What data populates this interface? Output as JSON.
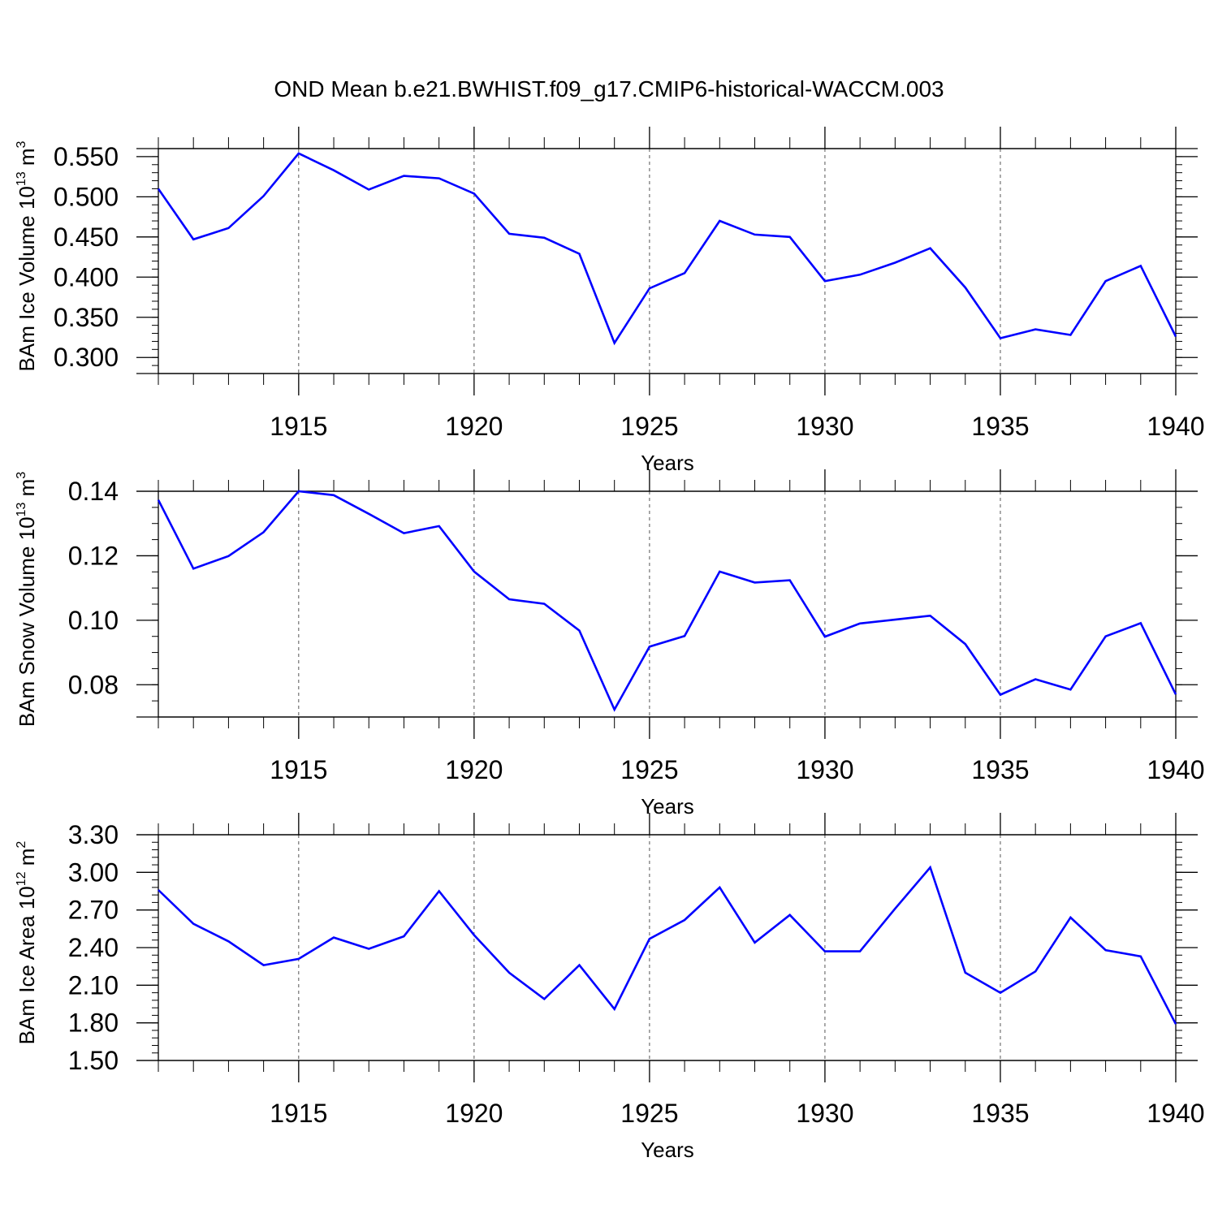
{
  "figure": {
    "title": "OND Mean b.e21.BWHIST.f09_g17.CMIP6-historical-WACCM.003",
    "line_color": "#0000ff"
  },
  "chart_data": [
    {
      "type": "line",
      "xlabel": "Years",
      "ylabel": {
        "text": "BAm Ice Volume 10",
        "exp": "13",
        "unit": " m",
        "unit_exp": "3"
      },
      "xlim": [
        1911,
        1940
      ],
      "ylim": [
        0.28,
        0.56
      ],
      "xticks": [
        1915,
        1920,
        1925,
        1930,
        1935,
        1940
      ],
      "xtick_labels": [
        "1915",
        "1920",
        "1925",
        "1930",
        "1935",
        "1940"
      ],
      "yticks": [
        0.3,
        0.35,
        0.4,
        0.45,
        0.5,
        0.55
      ],
      "ytick_labels": [
        "0.300",
        "0.350",
        "0.400",
        "0.450",
        "0.500",
        "0.550"
      ],
      "yminor_step": 0.01,
      "grid": "dashed vertical at major x ticks",
      "x": [
        1911,
        1912,
        1913,
        1914,
        1915,
        1916,
        1917,
        1918,
        1919,
        1920,
        1921,
        1922,
        1923,
        1924,
        1925,
        1926,
        1927,
        1928,
        1929,
        1930,
        1931,
        1932,
        1933,
        1934,
        1935,
        1936,
        1937,
        1938,
        1939,
        1940
      ],
      "values": [
        0.51,
        0.447,
        0.461,
        0.501,
        0.554,
        0.533,
        0.509,
        0.526,
        0.523,
        0.504,
        0.454,
        0.449,
        0.429,
        0.318,
        0.386,
        0.405,
        0.47,
        0.453,
        0.45,
        0.395,
        0.403,
        0.418,
        0.436,
        0.387,
        0.324,
        0.335,
        0.328,
        0.395,
        0.414,
        0.326
      ]
    },
    {
      "type": "line",
      "xlabel": "Years",
      "ylabel": {
        "text": "BAm Snow Volume 10",
        "exp": "13",
        "unit": " m",
        "unit_exp": "3"
      },
      "xlim": [
        1911,
        1940
      ],
      "ylim": [
        0.07,
        0.14
      ],
      "xticks": [
        1915,
        1920,
        1925,
        1930,
        1935,
        1940
      ],
      "xtick_labels": [
        "1915",
        "1920",
        "1925",
        "1930",
        "1935",
        "1940"
      ],
      "yticks": [
        0.08,
        0.1,
        0.12,
        0.14
      ],
      "ytick_labels": [
        "0.08",
        "0.10",
        "0.12",
        "0.14"
      ],
      "yminor_step": 0.005,
      "grid": "dashed vertical at major x ticks",
      "x": [
        1911,
        1912,
        1913,
        1914,
        1915,
        1916,
        1917,
        1918,
        1919,
        1920,
        1921,
        1922,
        1923,
        1924,
        1925,
        1926,
        1927,
        1928,
        1929,
        1930,
        1931,
        1932,
        1933,
        1934,
        1935,
        1936,
        1937,
        1938,
        1939,
        1940
      ],
      "values": [
        0.1373,
        0.116,
        0.1199,
        0.1273,
        0.14,
        0.1388,
        0.133,
        0.127,
        0.1292,
        0.1151,
        0.1065,
        0.1051,
        0.0968,
        0.0723,
        0.0918,
        0.0951,
        0.1151,
        0.1117,
        0.1124,
        0.0949,
        0.099,
        0.1002,
        0.1014,
        0.0926,
        0.0769,
        0.0817,
        0.0785,
        0.095,
        0.0991,
        0.077
      ]
    },
    {
      "type": "line",
      "xlabel": "Years",
      "ylabel": {
        "text": "BAm Ice Area 10",
        "exp": "12",
        "unit": " m",
        "unit_exp": "2"
      },
      "xlim": [
        1911,
        1940
      ],
      "ylim": [
        1.5,
        3.3
      ],
      "xticks": [
        1915,
        1920,
        1925,
        1930,
        1935,
        1940
      ],
      "xtick_labels": [
        "1915",
        "1920",
        "1925",
        "1930",
        "1935",
        "1940"
      ],
      "yticks": [
        1.5,
        1.8,
        2.1,
        2.4,
        2.7,
        3.0,
        3.3
      ],
      "ytick_labels": [
        "1.50",
        "1.80",
        "2.10",
        "2.40",
        "2.70",
        "3.00",
        "3.30"
      ],
      "yminor_step": 0.06,
      "grid": "dashed vertical at major x ticks",
      "x": [
        1911,
        1912,
        1913,
        1914,
        1915,
        1916,
        1917,
        1918,
        1919,
        1920,
        1921,
        1922,
        1923,
        1924,
        1925,
        1926,
        1927,
        1928,
        1929,
        1930,
        1931,
        1932,
        1933,
        1934,
        1935,
        1936,
        1937,
        1938,
        1939,
        1940
      ],
      "values": [
        2.86,
        2.59,
        2.45,
        2.26,
        2.31,
        2.48,
        2.39,
        2.49,
        2.85,
        2.5,
        2.2,
        1.99,
        2.26,
        1.91,
        2.47,
        2.62,
        2.88,
        2.44,
        2.66,
        2.37,
        2.37,
        2.71,
        3.04,
        2.2,
        2.04,
        2.21,
        2.64,
        2.38,
        2.33,
        1.79
      ]
    }
  ]
}
